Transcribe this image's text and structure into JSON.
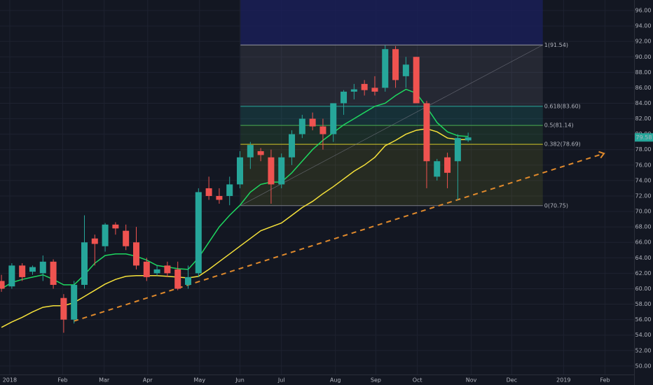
{
  "chart_data": {
    "type": "candlestick",
    "x": [
      0,
      1,
      2,
      3,
      4,
      5,
      6,
      7,
      8,
      9,
      10,
      11,
      12,
      13,
      14,
      15,
      16,
      17,
      18,
      19,
      20,
      21,
      22,
      23,
      24,
      25,
      26,
      27,
      28,
      29,
      30,
      31,
      32,
      33,
      34,
      35,
      36,
      37,
      38,
      39,
      40,
      41,
      42,
      43,
      44,
      45
    ],
    "open": [
      61,
      60.3,
      63,
      62.2,
      62,
      63.5,
      58.8,
      56,
      60.5,
      66.5,
      65.5,
      68.3,
      67.5,
      66,
      63.5,
      62,
      63,
      62.5,
      60.5,
      62,
      73,
      72,
      72,
      73.5,
      77,
      77.8,
      77,
      73.5,
      77,
      80,
      82,
      81,
      80,
      84,
      85.5,
      86.5,
      86,
      86,
      91,
      87.5,
      90,
      84,
      74.5,
      77,
      76.5,
      79.2
    ],
    "high": [
      61.8,
      63.3,
      63.3,
      63,
      64.3,
      63.8,
      59.3,
      61,
      69.5,
      67,
      68.5,
      68.6,
      68.3,
      68,
      64,
      63,
      63.5,
      63.5,
      63,
      73,
      74.5,
      73,
      74.5,
      77.8,
      79,
      78.2,
      78,
      77.5,
      80.5,
      82.5,
      82.8,
      82,
      84,
      85.7,
      86.5,
      87,
      87.5,
      91.5,
      91.4,
      90,
      90,
      84.3,
      76.8,
      77.6,
      80,
      80.2
    ],
    "low": [
      59.6,
      60,
      61,
      61.8,
      61,
      60,
      54.3,
      55.5,
      60,
      63,
      64.8,
      67,
      65,
      62.5,
      61,
      61.7,
      61.5,
      59.8,
      60,
      61.5,
      71.5,
      71,
      70.8,
      73,
      75.5,
      76.5,
      71,
      73,
      76,
      79.5,
      80.5,
      78,
      79,
      82.5,
      84.5,
      85,
      85,
      85.5,
      86,
      86,
      84,
      73,
      74,
      73,
      71.5,
      79
    ],
    "close": [
      60,
      63,
      61.5,
      62.8,
      63.5,
      60.5,
      56,
      60.5,
      66,
      65.8,
      68.3,
      67.8,
      65.5,
      63,
      61.5,
      62.5,
      62,
      60,
      61.5,
      72.5,
      72,
      71.5,
      73.5,
      77,
      78.6,
      77.3,
      73.5,
      77,
      80,
      82,
      81,
      80,
      84,
      85.5,
      85.8,
      85.7,
      85.5,
      91,
      87,
      89,
      84,
      76.5,
      76.5,
      75,
      79.5,
      79.58
    ],
    "up_color": "#26a69a",
    "down_color": "#ef5350",
    "series": [
      {
        "color": "#1ed760",
        "values": [
          60,
          60.8,
          61.2,
          61.5,
          61.8,
          61.2,
          60.5,
          60.5,
          61.8,
          63.3,
          64.3,
          64.5,
          64.5,
          64.2,
          63.7,
          63,
          62.8,
          62.6,
          62.5,
          64,
          66,
          68,
          69.5,
          70.8,
          72.5,
          73.5,
          73.8,
          73.8,
          75,
          76.5,
          78,
          79.2,
          80.2,
          81.2,
          82,
          82.8,
          83.6,
          84,
          85,
          85.8,
          85.3,
          83.5,
          81.5,
          80.3,
          79.8,
          79.7
        ]
      },
      {
        "color": "#f5e13a",
        "values": [
          55,
          55.7,
          56.3,
          57,
          57.6,
          57.8,
          57.8,
          58.2,
          59,
          59.8,
          60.6,
          61.2,
          61.6,
          61.7,
          61.7,
          61.7,
          61.6,
          61.5,
          61.4,
          61.6,
          62.5,
          63.5,
          64.5,
          65.5,
          66.5,
          67.5,
          68,
          68.5,
          69.5,
          70.5,
          71.3,
          72.3,
          73.2,
          74.2,
          75.2,
          76,
          77,
          78.5,
          79.2,
          80,
          80.5,
          80.7,
          80.3,
          79.5,
          79.3,
          79.3
        ]
      }
    ],
    "fib": {
      "x": [
        23.05,
        52.2
      ],
      "levels": [
        {
          "value": 91.54,
          "label": "1(91.54)",
          "color": "#9598a1"
        },
        {
          "value": 83.6,
          "label": "0.618(83.60)",
          "color": "#26a69a"
        },
        {
          "value": 81.14,
          "label": "0.5(81.14)",
          "color": "#4caf50"
        },
        {
          "value": 78.69,
          "label": "0.382(78.69)",
          "color": "#d4c72a"
        },
        {
          "value": 70.75,
          "label": "0(70.75)",
          "color": "#787b86"
        }
      ]
    },
    "trendline": {
      "color": "#e08a2c",
      "x": [
        6.96,
        58.1
      ],
      "y": [
        55.8,
        77.5
      ]
    },
    "last_price": 79.58,
    "xlim": [
      -0.14,
      61.0
    ],
    "xticks": [
      {
        "value": 0.8,
        "label": "2018"
      },
      {
        "value": 5.9,
        "label": "Feb"
      },
      {
        "value": 9.9,
        "label": "Mar"
      },
      {
        "value": 14.1,
        "label": "Apr"
      },
      {
        "value": 19.1,
        "label": "May"
      },
      {
        "value": 23.0,
        "label": "Jun"
      },
      {
        "value": 27.0,
        "label": "Jul"
      },
      {
        "value": 32.2,
        "label": "Aug"
      },
      {
        "value": 36.1,
        "label": "Sep"
      },
      {
        "value": 40.1,
        "label": "Oct"
      },
      {
        "value": 45.3,
        "label": "Nov"
      },
      {
        "value": 49.2,
        "label": "Dec"
      },
      {
        "value": 54.2,
        "label": "2019"
      },
      {
        "value": 58.2,
        "label": "Feb"
      }
    ],
    "ylim": [
      48.9,
      97.36
    ],
    "yticks": [
      {
        "value": 50,
        "label": "50.00"
      },
      {
        "value": 52,
        "label": "52.00"
      },
      {
        "value": 54,
        "label": "54.00"
      },
      {
        "value": 56,
        "label": "56.00"
      },
      {
        "value": 58,
        "label": "58.00"
      },
      {
        "value": 60,
        "label": "60.00"
      },
      {
        "value": 62,
        "label": "62.00"
      },
      {
        "value": 64,
        "label": "64.00"
      },
      {
        "value": 66,
        "label": "66.00"
      },
      {
        "value": 68,
        "label": "68.00"
      },
      {
        "value": 70,
        "label": "70.00"
      },
      {
        "value": 72,
        "label": "72.00"
      },
      {
        "value": 74,
        "label": "74.00"
      },
      {
        "value": 76,
        "label": "76.00"
      },
      {
        "value": 78,
        "label": "78.00"
      },
      {
        "value": 80,
        "label": "80.00"
      },
      {
        "value": 82,
        "label": "82.00"
      },
      {
        "value": 84,
        "label": "84.00"
      },
      {
        "value": 86,
        "label": "86.00"
      },
      {
        "value": 88,
        "label": "88.00"
      },
      {
        "value": 90,
        "label": "90.00"
      },
      {
        "value": 92,
        "label": "92.00"
      },
      {
        "value": 94,
        "label": "94.00"
      },
      {
        "value": 96,
        "label": "96.00"
      }
    ],
    "grid": true
  }
}
